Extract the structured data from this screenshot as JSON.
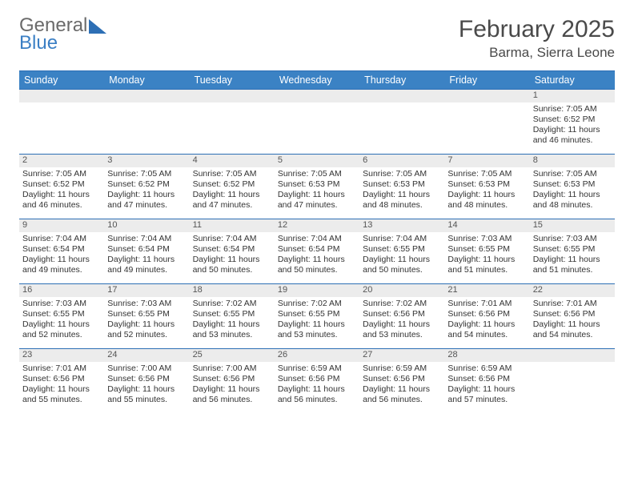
{
  "logo": {
    "line1": "General",
    "line2": "Blue"
  },
  "title": "February 2025",
  "location": "Barma, Sierra Leone",
  "colors": {
    "header_bg": "#3b82c4",
    "border": "#2d6fb5",
    "daynum_bg": "#ececec",
    "text": "#333333"
  },
  "weekdays": [
    "Sunday",
    "Monday",
    "Tuesday",
    "Wednesday",
    "Thursday",
    "Friday",
    "Saturday"
  ],
  "weeks": [
    [
      {
        "num": "",
        "sunrise": "",
        "sunset": "",
        "daylight": ""
      },
      {
        "num": "",
        "sunrise": "",
        "sunset": "",
        "daylight": ""
      },
      {
        "num": "",
        "sunrise": "",
        "sunset": "",
        "daylight": ""
      },
      {
        "num": "",
        "sunrise": "",
        "sunset": "",
        "daylight": ""
      },
      {
        "num": "",
        "sunrise": "",
        "sunset": "",
        "daylight": ""
      },
      {
        "num": "",
        "sunrise": "",
        "sunset": "",
        "daylight": ""
      },
      {
        "num": "1",
        "sunrise": "Sunrise: 7:05 AM",
        "sunset": "Sunset: 6:52 PM",
        "daylight": "Daylight: 11 hours and 46 minutes."
      }
    ],
    [
      {
        "num": "2",
        "sunrise": "Sunrise: 7:05 AM",
        "sunset": "Sunset: 6:52 PM",
        "daylight": "Daylight: 11 hours and 46 minutes."
      },
      {
        "num": "3",
        "sunrise": "Sunrise: 7:05 AM",
        "sunset": "Sunset: 6:52 PM",
        "daylight": "Daylight: 11 hours and 47 minutes."
      },
      {
        "num": "4",
        "sunrise": "Sunrise: 7:05 AM",
        "sunset": "Sunset: 6:52 PM",
        "daylight": "Daylight: 11 hours and 47 minutes."
      },
      {
        "num": "5",
        "sunrise": "Sunrise: 7:05 AM",
        "sunset": "Sunset: 6:53 PM",
        "daylight": "Daylight: 11 hours and 47 minutes."
      },
      {
        "num": "6",
        "sunrise": "Sunrise: 7:05 AM",
        "sunset": "Sunset: 6:53 PM",
        "daylight": "Daylight: 11 hours and 48 minutes."
      },
      {
        "num": "7",
        "sunrise": "Sunrise: 7:05 AM",
        "sunset": "Sunset: 6:53 PM",
        "daylight": "Daylight: 11 hours and 48 minutes."
      },
      {
        "num": "8",
        "sunrise": "Sunrise: 7:05 AM",
        "sunset": "Sunset: 6:53 PM",
        "daylight": "Daylight: 11 hours and 48 minutes."
      }
    ],
    [
      {
        "num": "9",
        "sunrise": "Sunrise: 7:04 AM",
        "sunset": "Sunset: 6:54 PM",
        "daylight": "Daylight: 11 hours and 49 minutes."
      },
      {
        "num": "10",
        "sunrise": "Sunrise: 7:04 AM",
        "sunset": "Sunset: 6:54 PM",
        "daylight": "Daylight: 11 hours and 49 minutes."
      },
      {
        "num": "11",
        "sunrise": "Sunrise: 7:04 AM",
        "sunset": "Sunset: 6:54 PM",
        "daylight": "Daylight: 11 hours and 50 minutes."
      },
      {
        "num": "12",
        "sunrise": "Sunrise: 7:04 AM",
        "sunset": "Sunset: 6:54 PM",
        "daylight": "Daylight: 11 hours and 50 minutes."
      },
      {
        "num": "13",
        "sunrise": "Sunrise: 7:04 AM",
        "sunset": "Sunset: 6:55 PM",
        "daylight": "Daylight: 11 hours and 50 minutes."
      },
      {
        "num": "14",
        "sunrise": "Sunrise: 7:03 AM",
        "sunset": "Sunset: 6:55 PM",
        "daylight": "Daylight: 11 hours and 51 minutes."
      },
      {
        "num": "15",
        "sunrise": "Sunrise: 7:03 AM",
        "sunset": "Sunset: 6:55 PM",
        "daylight": "Daylight: 11 hours and 51 minutes."
      }
    ],
    [
      {
        "num": "16",
        "sunrise": "Sunrise: 7:03 AM",
        "sunset": "Sunset: 6:55 PM",
        "daylight": "Daylight: 11 hours and 52 minutes."
      },
      {
        "num": "17",
        "sunrise": "Sunrise: 7:03 AM",
        "sunset": "Sunset: 6:55 PM",
        "daylight": "Daylight: 11 hours and 52 minutes."
      },
      {
        "num": "18",
        "sunrise": "Sunrise: 7:02 AM",
        "sunset": "Sunset: 6:55 PM",
        "daylight": "Daylight: 11 hours and 53 minutes."
      },
      {
        "num": "19",
        "sunrise": "Sunrise: 7:02 AM",
        "sunset": "Sunset: 6:55 PM",
        "daylight": "Daylight: 11 hours and 53 minutes."
      },
      {
        "num": "20",
        "sunrise": "Sunrise: 7:02 AM",
        "sunset": "Sunset: 6:56 PM",
        "daylight": "Daylight: 11 hours and 53 minutes."
      },
      {
        "num": "21",
        "sunrise": "Sunrise: 7:01 AM",
        "sunset": "Sunset: 6:56 PM",
        "daylight": "Daylight: 11 hours and 54 minutes."
      },
      {
        "num": "22",
        "sunrise": "Sunrise: 7:01 AM",
        "sunset": "Sunset: 6:56 PM",
        "daylight": "Daylight: 11 hours and 54 minutes."
      }
    ],
    [
      {
        "num": "23",
        "sunrise": "Sunrise: 7:01 AM",
        "sunset": "Sunset: 6:56 PM",
        "daylight": "Daylight: 11 hours and 55 minutes."
      },
      {
        "num": "24",
        "sunrise": "Sunrise: 7:00 AM",
        "sunset": "Sunset: 6:56 PM",
        "daylight": "Daylight: 11 hours and 55 minutes."
      },
      {
        "num": "25",
        "sunrise": "Sunrise: 7:00 AM",
        "sunset": "Sunset: 6:56 PM",
        "daylight": "Daylight: 11 hours and 56 minutes."
      },
      {
        "num": "26",
        "sunrise": "Sunrise: 6:59 AM",
        "sunset": "Sunset: 6:56 PM",
        "daylight": "Daylight: 11 hours and 56 minutes."
      },
      {
        "num": "27",
        "sunrise": "Sunrise: 6:59 AM",
        "sunset": "Sunset: 6:56 PM",
        "daylight": "Daylight: 11 hours and 56 minutes."
      },
      {
        "num": "28",
        "sunrise": "Sunrise: 6:59 AM",
        "sunset": "Sunset: 6:56 PM",
        "daylight": "Daylight: 11 hours and 57 minutes."
      },
      {
        "num": "",
        "sunrise": "",
        "sunset": "",
        "daylight": ""
      }
    ]
  ]
}
